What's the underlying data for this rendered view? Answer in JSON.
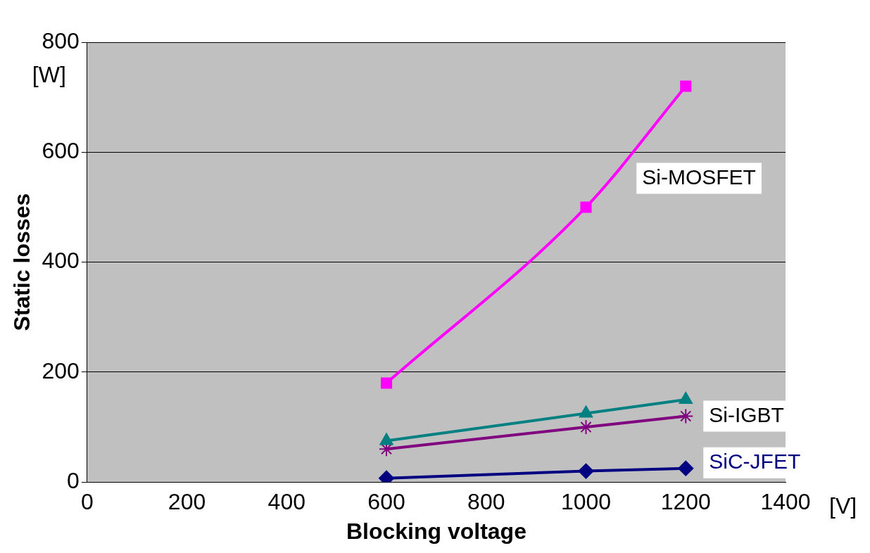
{
  "chart_data": {
    "type": "line",
    "xlabel": "Blocking voltage",
    "ylabel": "Static losses",
    "annotations": [
      "[W]",
      "[V]"
    ],
    "xlim": [
      0,
      1400
    ],
    "xticks": [
      0,
      200,
      400,
      600,
      800,
      1000,
      1200,
      1400
    ],
    "ylim": [
      0,
      800
    ],
    "yticks": [
      0,
      200,
      400,
      600,
      800
    ],
    "grid": "y",
    "legend": false,
    "line_style": "solid",
    "series": [
      {
        "name": "Si-MOSFET",
        "color": "#ff00ff",
        "marker": "square",
        "x": [
          600,
          1000,
          1200
        ],
        "values": [
          180,
          500,
          720
        ]
      },
      {
        "color": "#008080",
        "marker": "triangle",
        "x": [
          600,
          1000,
          1200
        ],
        "values": [
          75,
          125,
          150
        ]
      },
      {
        "name": "Si-IGBT",
        "color": "#800080",
        "marker": "cross",
        "x": [
          600,
          1000,
          1200
        ],
        "values": [
          60,
          100,
          120
        ]
      },
      {
        "name": "SiC-JFET",
        "color": "#000080",
        "marker": "diamond",
        "x": [
          600,
          1000,
          1200
        ],
        "values": [
          7,
          20,
          25
        ]
      }
    ]
  }
}
